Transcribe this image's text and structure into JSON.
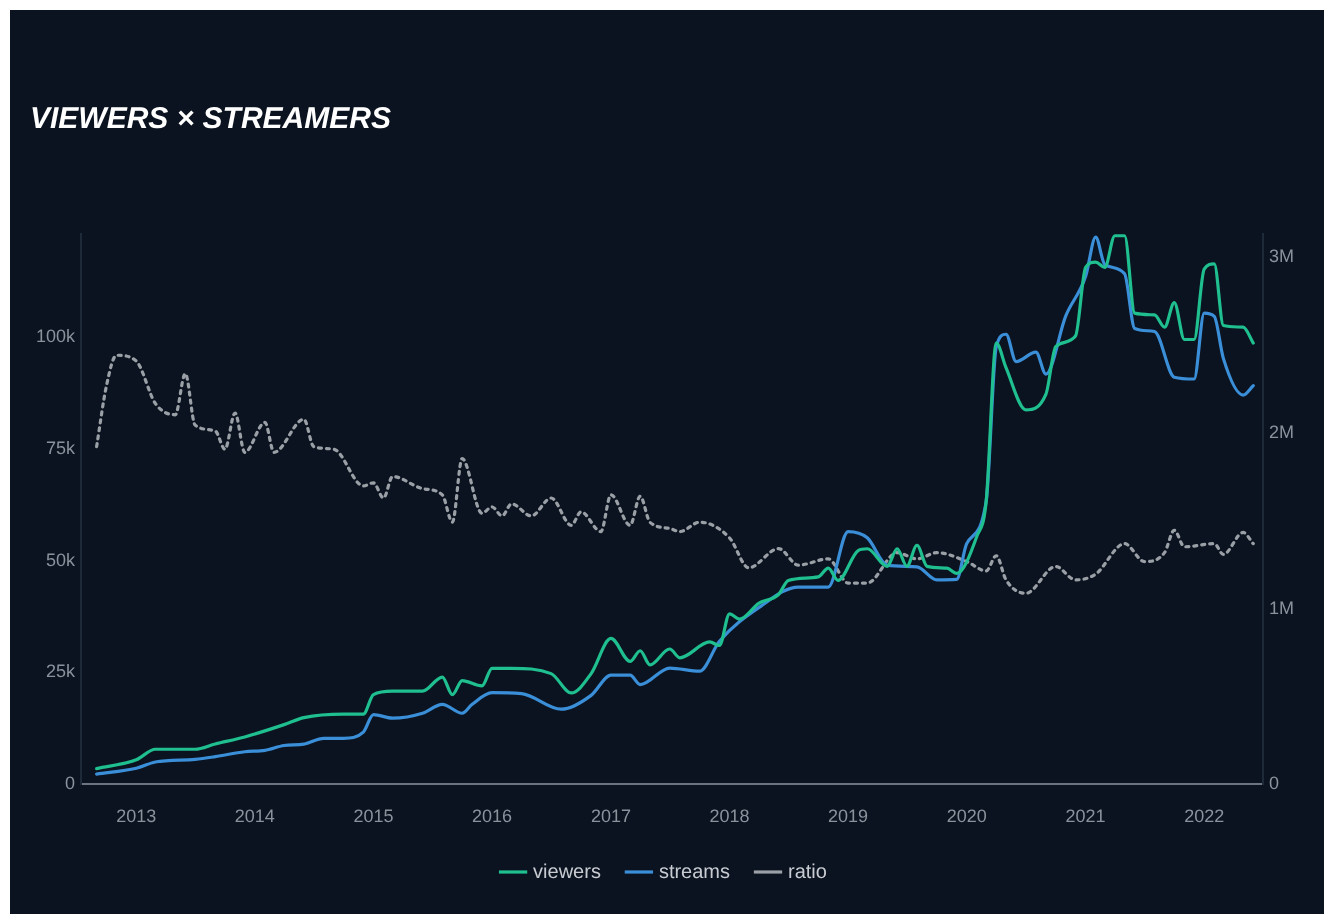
{
  "chart_data": {
    "type": "line",
    "title": "VIEWERS × STREAMERS",
    "legend": "bottom",
    "marker": "none",
    "line_style": "solid",
    "xlim": [
      "2012-07-15",
      "2022-07-01"
    ],
    "xticks": [
      "2013",
      "2014",
      "2015",
      "2016",
      "2017",
      "2018",
      "2019",
      "2020",
      "2021",
      "2022"
    ],
    "ylim": [
      0,
      123000
    ],
    "yticks": [
      0,
      {
        "value": 25000,
        "label": "25k"
      },
      {
        "value": 50000,
        "label": "50k"
      },
      {
        "value": 75000,
        "label": "75k"
      },
      {
        "value": 100000,
        "label": "100k"
      }
    ],
    "y2lim": [
      0,
      3130000
    ],
    "y2ticks": [
      0,
      {
        "value": 1000000,
        "label": "1M"
      },
      {
        "value": 2000000,
        "label": "2M"
      },
      {
        "value": 3000000,
        "label": "3M"
      }
    ],
    "series": [
      {
        "name": "viewers",
        "color": "#1fbf8f",
        "axis": "y2",
        "x": [
          "2012-09",
          "2013-01",
          "2013-03",
          "2013-07",
          "2013-09",
          "2013-12",
          "2014-04",
          "2014-06",
          "2014-10",
          "2014-12",
          "2015-01",
          "2015-03",
          "2015-06",
          "2015-08",
          "2015-09",
          "2015-10",
          "2015-12",
          "2016-01",
          "2016-03",
          "2016-07",
          "2016-09",
          "2016-11",
          "2017-01",
          "2017-03",
          "2017-04",
          "2017-05",
          "2017-07",
          "2017-08",
          "2017-11",
          "2017-12",
          "2018-01",
          "2018-02",
          "2018-04",
          "2018-06",
          "2018-07",
          "2018-10",
          "2018-11",
          "2018-12",
          "2019-02",
          "2019-03",
          "2019-05",
          "2019-06",
          "2019-07",
          "2019-08",
          "2019-09",
          "2019-11",
          "2019-12",
          "2020-02",
          "2020-03",
          "2020-04",
          "2020-05",
          "2020-07",
          "2020-09",
          "2020-10",
          "2020-12",
          "2021-01",
          "2021-02",
          "2021-03",
          "2021-04",
          "2021-05",
          "2021-06",
          "2021-08",
          "2021-09",
          "2021-10",
          "2021-11",
          "2021-12",
          "2022-01",
          "2022-02",
          "2022-03",
          "2022-05",
          "2022-06"
        ],
        "values": [
          90000,
          140000,
          200000,
          200000,
          230000,
          270000,
          340000,
          380000,
          400000,
          400000,
          510000,
          530000,
          530000,
          610000,
          510000,
          590000,
          560000,
          660000,
          660000,
          630000,
          520000,
          630000,
          830000,
          700000,
          760000,
          680000,
          770000,
          720000,
          810000,
          790000,
          970000,
          940000,
          1030000,
          1080000,
          1160000,
          1180000,
          1230000,
          1160000,
          1330000,
          1340000,
          1240000,
          1340000,
          1240000,
          1360000,
          1240000,
          1230000,
          1200000,
          1410000,
          1610000,
          2510000,
          2370000,
          2130000,
          2220000,
          2490000,
          2550000,
          2940000,
          2970000,
          2940000,
          3120000,
          3120000,
          2680000,
          2670000,
          2600000,
          2740000,
          2530000,
          2530000,
          2930000,
          2960000,
          2610000,
          2600000,
          2510000
        ]
      },
      {
        "name": "streams",
        "color": "#3a8fd8",
        "x": [
          "2012-09",
          "2013-01",
          "2013-03",
          "2013-07",
          "2013-09",
          "2013-12",
          "2014-02",
          "2014-04",
          "2014-06",
          "2014-08",
          "2014-10",
          "2014-12",
          "2015-01",
          "2015-03",
          "2015-06",
          "2015-08",
          "2015-10",
          "2015-11",
          "2016-01",
          "2016-04",
          "2016-08",
          "2016-11",
          "2017-01",
          "2017-03",
          "2017-04",
          "2017-07",
          "2017-10",
          "2017-12",
          "2018-04",
          "2018-08",
          "2018-11",
          "2019-01",
          "2019-03",
          "2019-05",
          "2019-08",
          "2019-10",
          "2019-12",
          "2020-01",
          "2020-03",
          "2020-04",
          "2020-05",
          "2020-06",
          "2020-08",
          "2020-09",
          "2020-11",
          "2021-01",
          "2021-02",
          "2021-03",
          "2021-05",
          "2021-06",
          "2021-08",
          "2021-10",
          "2021-12",
          "2022-01",
          "2022-02",
          "2022-03",
          "2022-05",
          "2022-06"
        ],
        "values": [
          2300,
          3600,
          5000,
          5600,
          6200,
          7300,
          7600,
          8700,
          9000,
          10300,
          10300,
          11700,
          15600,
          14800,
          15900,
          17900,
          15900,
          17900,
          20500,
          20300,
          16800,
          19900,
          24400,
          24400,
          22300,
          26000,
          25300,
          32000,
          39500,
          44100,
          44100,
          56500,
          55100,
          49000,
          48600,
          45700,
          45800,
          53800,
          63300,
          97800,
          100600,
          94500,
          96600,
          91700,
          104700,
          113500,
          122300,
          116200,
          114100,
          101900,
          101200,
          91000,
          90600,
          105300,
          104600,
          95200,
          87000,
          89100
        ]
      },
      {
        "name": "ratio",
        "color": "#9aa0a6",
        "line_style": "dotted",
        "x": [
          "2012-09",
          "2012-10",
          "2012-11",
          "2013-01",
          "2013-03",
          "2013-05",
          "2013-06",
          "2013-07",
          "2013-09",
          "2013-10",
          "2013-11",
          "2013-12",
          "2014-02",
          "2014-03",
          "2014-06",
          "2014-07",
          "2014-09",
          "2014-12",
          "2015-01",
          "2015-02",
          "2015-03",
          "2015-06",
          "2015-08",
          "2015-09",
          "2015-10",
          "2015-12",
          "2016-01",
          "2016-02",
          "2016-03",
          "2016-05",
          "2016-07",
          "2016-09",
          "2016-10",
          "2016-12",
          "2017-01",
          "2017-03",
          "2017-04",
          "2017-05",
          "2017-07",
          "2017-08",
          "2017-10",
          "2018-01",
          "2018-03",
          "2018-06",
          "2018-08",
          "2018-11",
          "2019-01",
          "2019-03",
          "2019-06",
          "2019-08",
          "2019-10",
          "2020-01",
          "2020-03",
          "2020-04",
          "2020-05",
          "2020-07",
          "2020-10",
          "2020-12",
          "2021-02",
          "2021-05",
          "2021-07",
          "2021-09",
          "2021-10",
          "2021-11",
          "2022-02",
          "2022-03",
          "2022-05",
          "2022-06"
        ],
        "values": [
          75500,
          89000,
          95900,
          94600,
          85100,
          82600,
          91800,
          80300,
          79000,
          74900,
          83000,
          74200,
          80900,
          74200,
          81600,
          75500,
          74900,
          66700,
          67400,
          64000,
          68800,
          66100,
          64700,
          58600,
          72800,
          60600,
          62000,
          60000,
          62700,
          60000,
          64000,
          57900,
          60900,
          56500,
          64700,
          57900,
          64400,
          58600,
          57200,
          56500,
          58600,
          55100,
          48400,
          52700,
          49000,
          50400,
          45000,
          45000,
          51800,
          50400,
          51800,
          49800,
          47700,
          51100,
          45700,
          42700,
          48700,
          45700,
          47000,
          53800,
          49800,
          51800,
          56800,
          53100,
          53800,
          51400,
          56300,
          53800
        ]
      }
    ]
  }
}
